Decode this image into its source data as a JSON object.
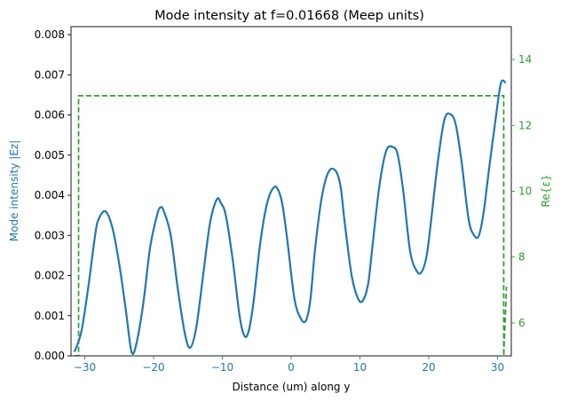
{
  "chart_data": {
    "type": "line",
    "title": "Mode intensity at f=0.01668 (Meep units)",
    "xlabel": "Distance (um) along y",
    "ylabel_left": "Mode intensity |Ez|",
    "ylabel_right": "Re{ε}",
    "xlim": [
      -32,
      32
    ],
    "ylim_left": [
      0,
      0.0082
    ],
    "ylim_right": [
      5,
      15
    ],
    "x_ticks": [
      -30,
      -20,
      -10,
      0,
      10,
      20,
      30
    ],
    "y_left_ticks": [
      "0.000",
      "0.001",
      "0.002",
      "0.003",
      "0.004",
      "0.005",
      "0.006",
      "0.007",
      "0.008"
    ],
    "y_right_ticks": [
      "6",
      "8",
      "10",
      "12",
      "14"
    ],
    "grid": false,
    "colors": {
      "intensity": "#1f77b4",
      "epsilon": "#2ca02c",
      "axis": "#000000"
    },
    "series": [
      {
        "axis": "left",
        "style": "solid",
        "x": [
          -31.5,
          -30.5,
          -29.5,
          -28.5,
          -28,
          -27,
          -26,
          -25,
          -24,
          -23.2,
          -22.5,
          -21.5,
          -20.5,
          -19.5,
          -19,
          -18.5,
          -17.5,
          -16.5,
          -15.5,
          -14.7,
          -13.8,
          -12.8,
          -11.8,
          -10.8,
          -10.2,
          -9.5,
          -8.5,
          -7.5,
          -6.8,
          -6.2,
          -5.5,
          -4.5,
          -3.5,
          -2.5,
          -1.8,
          -1.2,
          -0.5,
          0.5,
          1.5,
          2.2,
          2.8,
          3.5,
          4.5,
          5.5,
          6.5,
          7.2,
          7.8,
          8.8,
          9.8,
          10.5,
          11.2,
          11.8,
          12.8,
          13.8,
          14.8,
          15.5,
          16.3,
          17.3,
          18.3,
          19,
          19.7,
          20.3,
          21.3,
          22.3,
          23.3,
          24,
          24.8,
          25.8,
          26.6,
          27.3,
          28,
          28.8,
          29.8,
          30.5,
          31.2
        ],
        "y": [
          0.0001,
          0.0006,
          0.0017,
          0.003,
          0.0034,
          0.0036,
          0.0032,
          0.0023,
          0.0011,
          0.0001,
          0.0003,
          0.0013,
          0.0027,
          0.0035,
          0.0037,
          0.0036,
          0.003,
          0.0017,
          0.0006,
          0.0002,
          0.0007,
          0.002,
          0.0033,
          0.0039,
          0.0038,
          0.0035,
          0.0024,
          0.001,
          0.0005,
          0.0006,
          0.0013,
          0.0028,
          0.0038,
          0.0042,
          0.0041,
          0.0037,
          0.0028,
          0.0014,
          0.0009,
          0.0009,
          0.0014,
          0.0027,
          0.004,
          0.0046,
          0.0046,
          0.0042,
          0.0033,
          0.002,
          0.0014,
          0.0014,
          0.0018,
          0.0027,
          0.0042,
          0.0051,
          0.0052,
          0.005,
          0.0041,
          0.0026,
          0.0021,
          0.0021,
          0.0025,
          0.0033,
          0.0048,
          0.0059,
          0.006,
          0.0057,
          0.0048,
          0.0034,
          0.003,
          0.003,
          0.0036,
          0.0047,
          0.006,
          0.0068,
          0.0068
        ]
      },
      {
        "axis": "right",
        "style": "dashed",
        "x": [
          -31.5,
          -30.9,
          -30.9,
          30.9,
          30.9,
          31.3
        ],
        "y": [
          5.0,
          5.0,
          12.9,
          12.9,
          5.0,
          7.1
        ]
      }
    ]
  }
}
